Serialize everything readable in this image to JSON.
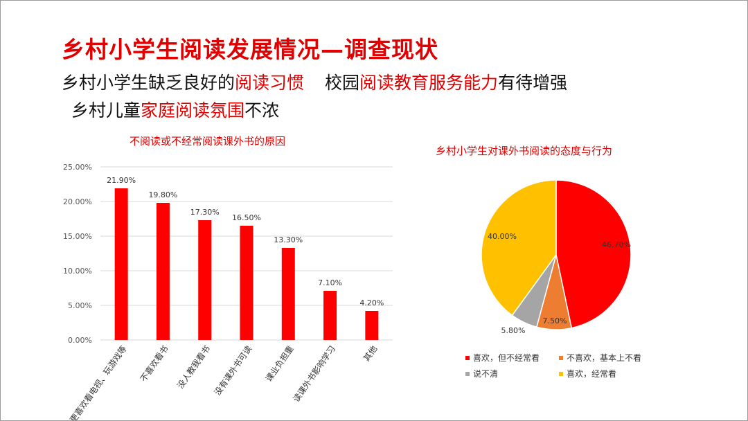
{
  "slide": {
    "title": "乡村小学生阅读发展情况—调查现状",
    "line1": {
      "part1": "乡村小学生缺乏良好的",
      "part2": "阅读习惯",
      "part3": "校园",
      "part4": "阅读教育服务能力",
      "part5": "有待增强"
    },
    "line2": {
      "part1": "乡村儿童",
      "part2": "家庭阅读氛围",
      "part3": "不浓"
    }
  },
  "chart_data": [
    {
      "type": "bar",
      "title": "不阅读或不经常阅读课外书的原因",
      "categories": [
        "更喜欢看电视、玩游戏等",
        "不喜欢看书",
        "没人教我看书",
        "没有课外书可读",
        "课业负担重",
        "读课外书影响学习",
        "其他"
      ],
      "values": [
        21.9,
        19.8,
        17.3,
        16.5,
        13.3,
        7.1,
        4.2
      ],
      "data_labels": [
        "21.90%",
        "19.80%",
        "17.30%",
        "16.50%",
        "13.30%",
        "7.10%",
        "4.20%"
      ],
      "yticks": [
        "0.00%",
        "5.00%",
        "10.00%",
        "15.00%",
        "20.00%",
        "25.00%"
      ],
      "ylim": [
        0,
        25
      ],
      "grid": true,
      "color": "#ff0000"
    },
    {
      "type": "pie",
      "title": "乡村小学生对课外书阅读的态度与行为",
      "slices": [
        {
          "label": "喜欢，但不经常看",
          "value": 46.7,
          "display": "46.70%",
          "color": "#ff0000"
        },
        {
          "label": "不喜欢，基本上不看",
          "value": 7.5,
          "display": "7.50%",
          "color": "#ed7d31"
        },
        {
          "label": "说不清",
          "value": 5.8,
          "display": "5.80%",
          "color": "#a5a5a5"
        },
        {
          "label": "喜欢，经常看",
          "value": 40.0,
          "display": "40.00%",
          "color": "#ffc000"
        }
      ],
      "legend_placement": "bottom"
    }
  ]
}
